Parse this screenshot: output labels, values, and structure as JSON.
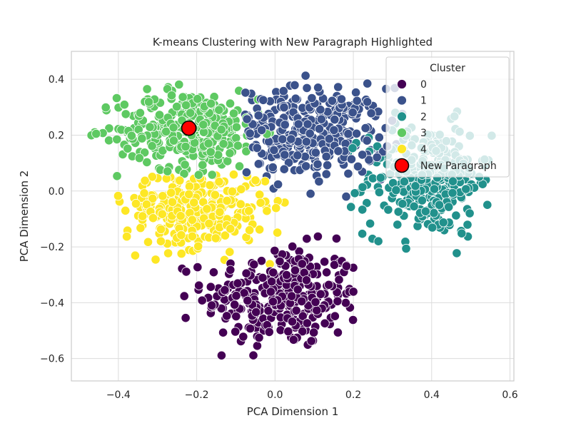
{
  "chart_data": {
    "type": "scatter",
    "title": "K-means Clustering with New Paragraph Highlighted",
    "xlabel": "PCA Dimension 1",
    "ylabel": "PCA Dimension 2",
    "xlim": [
      -0.52,
      0.61
    ],
    "ylim": [
      -0.68,
      0.5
    ],
    "xticks": [
      -0.4,
      -0.2,
      0.0,
      0.2,
      0.4,
      0.6
    ],
    "xtick_labels": [
      "−0.4",
      "−0.2",
      "0.0",
      "0.2",
      "0.4",
      "0.6"
    ],
    "yticks": [
      -0.6,
      -0.4,
      -0.2,
      0.0,
      0.2,
      0.4
    ],
    "ytick_labels": [
      "−0.6",
      "−0.4",
      "−0.2",
      "0.0",
      "0.2",
      "0.4"
    ],
    "grid": true,
    "legend": {
      "title": "Cluster",
      "placement": "top-right",
      "entries": [
        {
          "label": "0",
          "color": "#440154"
        },
        {
          "label": "1",
          "color": "#3b528b"
        },
        {
          "label": "2",
          "color": "#21918c"
        },
        {
          "label": "3",
          "color": "#5ec962"
        },
        {
          "label": "4",
          "color": "#fde725"
        },
        {
          "label": "New Paragraph",
          "color": "#ff0000"
        }
      ]
    },
    "series": [
      {
        "name": "0",
        "color": "#440154",
        "approx_points": 300,
        "center": [
          0.02,
          -0.38
        ],
        "spread": [
          0.1,
          0.09
        ],
        "bounds": {
          "x": [
            -0.24,
            0.22
          ],
          "y": [
            -0.63,
            -0.15
          ]
        }
      },
      {
        "name": "1",
        "color": "#3b528b",
        "approx_points": 320,
        "center": [
          0.09,
          0.21
        ],
        "spread": [
          0.1,
          0.08
        ],
        "bounds": {
          "x": [
            -0.08,
            0.33
          ],
          "y": [
            -0.05,
            0.42
          ]
        }
      },
      {
        "name": "2",
        "color": "#21918c",
        "approx_points": 300,
        "center": [
          0.39,
          0.04
        ],
        "spread": [
          0.08,
          0.1
        ],
        "bounds": {
          "x": [
            0.12,
            0.56
          ],
          "y": [
            -0.25,
            0.37
          ]
        }
      },
      {
        "name": "3",
        "color": "#5ec962",
        "approx_points": 320,
        "center": [
          -0.22,
          0.22
        ],
        "spread": [
          0.09,
          0.07
        ],
        "bounds": {
          "x": [
            -0.47,
            0.0
          ],
          "y": [
            0.02,
            0.44
          ]
        }
      },
      {
        "name": "4",
        "color": "#fde725",
        "approx_points": 300,
        "center": [
          -0.2,
          -0.06
        ],
        "spread": [
          0.09,
          0.07
        ],
        "bounds": {
          "x": [
            -0.41,
            0.05
          ],
          "y": [
            -0.28,
            0.06
          ]
        }
      }
    ],
    "highlight": {
      "name": "New Paragraph",
      "x": -0.22,
      "y": 0.225,
      "color": "#ff0000",
      "edgecolor": "#000000"
    }
  }
}
